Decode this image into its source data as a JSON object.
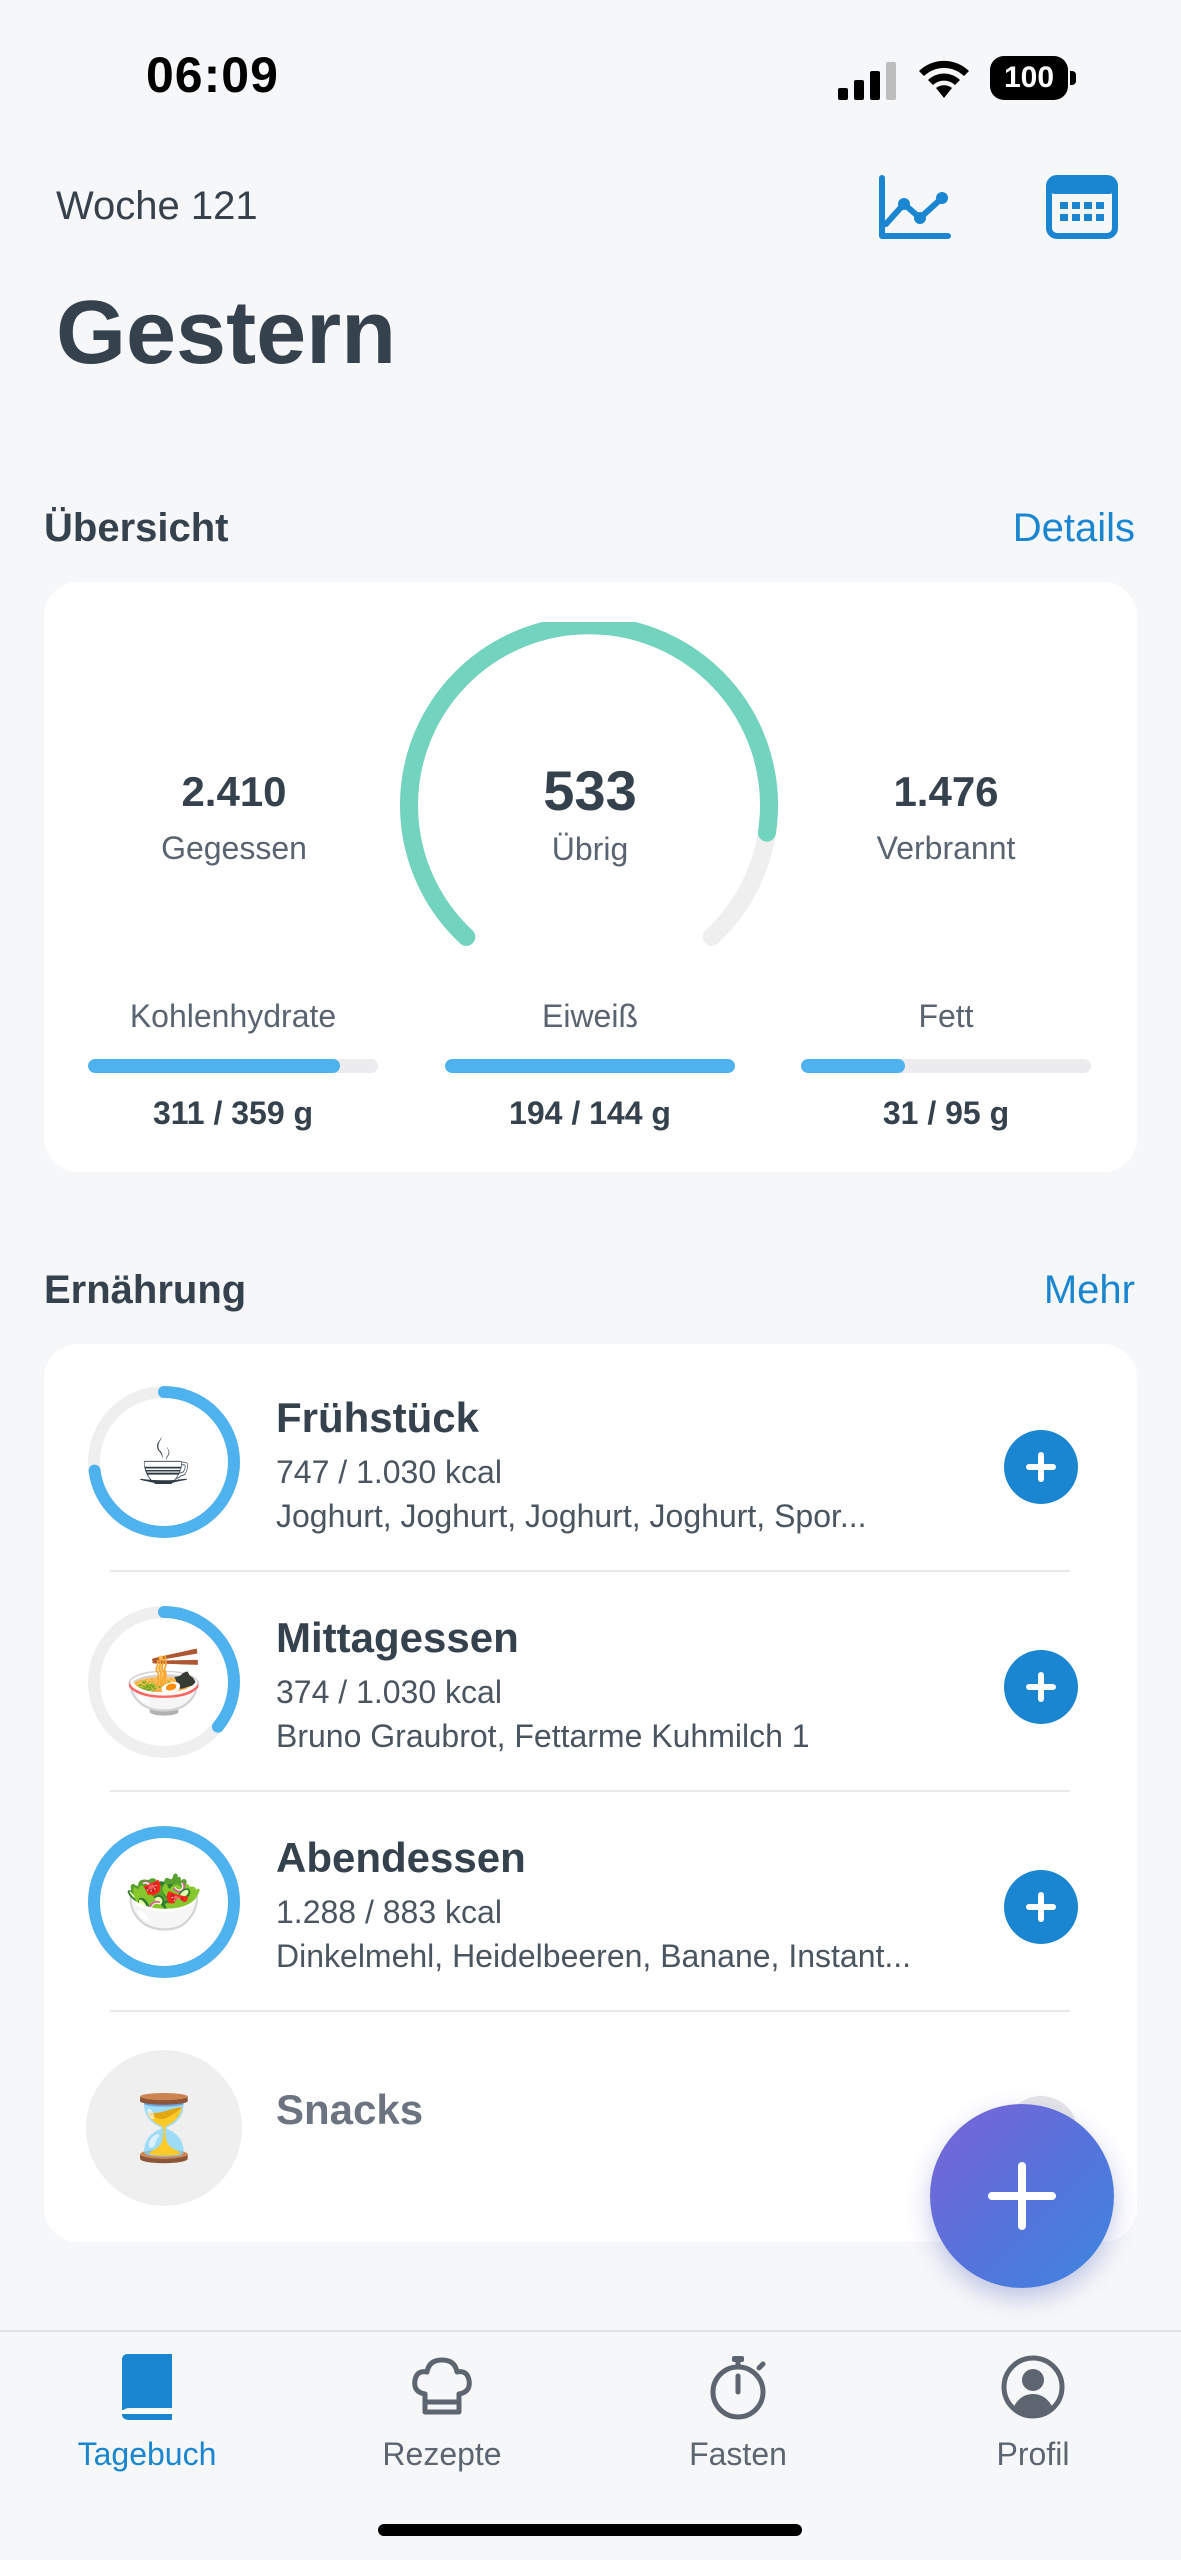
{
  "status_bar": {
    "time": "06:09",
    "battery": "100"
  },
  "header": {
    "week_label": "Woche 121",
    "title": "Gestern",
    "chart_icon": "line-chart-icon",
    "calendar_icon": "calendar-icon"
  },
  "overview": {
    "section_title": "Übersicht",
    "link_label": "Details",
    "eaten": {
      "value": "2.410",
      "label": "Gegessen"
    },
    "remaining": {
      "value": "533",
      "label": "Übrig",
      "progress": 0.86
    },
    "burned": {
      "value": "1.476",
      "label": "Verbrannt"
    },
    "macros": [
      {
        "label": "Kohlenhydrate",
        "value": "311 / 359 g",
        "progress": 0.87
      },
      {
        "label": "Eiweiß",
        "value": "194 / 144 g",
        "progress": 1.0
      },
      {
        "label": "Fett",
        "value": "31 / 95 g",
        "progress": 0.36
      }
    ]
  },
  "nutrition": {
    "section_title": "Ernährung",
    "link_label": "Mehr",
    "meals": [
      {
        "name": "Frühstück",
        "kcal": "747 / 1.030 kcal",
        "items": "Joghurt, Joghurt, Joghurt, Joghurt, Spor...",
        "progress": 0.73,
        "icon": "coffee-cup-icon"
      },
      {
        "name": "Mittagessen",
        "kcal": "374 / 1.030 kcal",
        "items": "Bruno Graubrot, Fettarme Kuhmilch 1",
        "progress": 0.36,
        "icon": "soup-bowl-icon"
      },
      {
        "name": "Abendessen",
        "kcal": "1.288 / 883 kcal",
        "items": "Dinkelmehl, Heidelbeeren, Banane, Instant...",
        "progress": 1.0,
        "icon": "salad-icon"
      }
    ],
    "snacks": {
      "name": "Snacks",
      "icon": "hourglass-icon"
    }
  },
  "tabs": [
    {
      "label": "Tagebuch",
      "icon": "book-icon",
      "active": true
    },
    {
      "label": "Rezepte",
      "icon": "chef-hat-icon",
      "active": false
    },
    {
      "label": "Fasten",
      "icon": "stopwatch-icon",
      "active": false
    },
    {
      "label": "Profil",
      "icon": "profile-icon",
      "active": false
    }
  ],
  "colors": {
    "accent": "#1a85d0",
    "gauge": "#72d3bf",
    "progress": "#4db2ee",
    "track": "#ececee"
  }
}
